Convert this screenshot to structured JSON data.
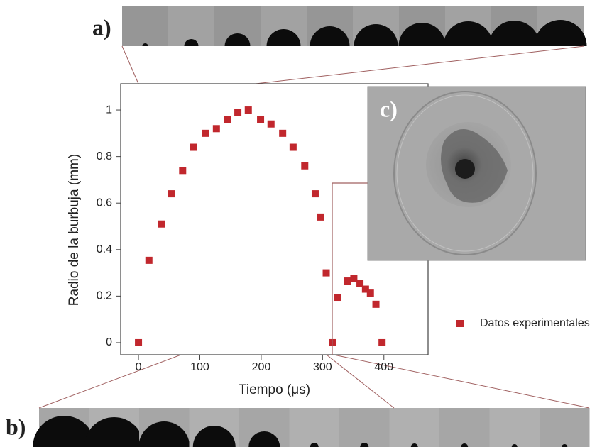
{
  "panels": {
    "a": "a)",
    "b": "b)",
    "c": "c)"
  },
  "chart_data": {
    "type": "scatter",
    "x_label": "Tiempo (μs)",
    "y_label": "Radio de la burbuja (mm)",
    "xlim": [
      -29,
      472
    ],
    "ylim": [
      -0.052,
      1.113
    ],
    "xticks": [
      0,
      100,
      200,
      300,
      400
    ],
    "yticks": [
      0,
      0.2,
      0.4,
      0.6,
      0.8,
      1
    ],
    "series": [
      {
        "name": "Datos experimentales",
        "color": "#c1272d",
        "x": [
          0,
          17,
          37,
          54,
          72,
          90,
          109,
          127,
          145,
          162,
          179,
          199,
          216,
          235,
          252,
          271,
          288,
          297,
          306,
          316,
          325,
          341,
          351,
          361,
          370,
          378,
          387,
          397
        ],
        "values": [
          0,
          0.354,
          0.51,
          0.64,
          0.74,
          0.84,
          0.9,
          0.92,
          0.96,
          0.99,
          1.0,
          0.96,
          0.94,
          0.9,
          0.84,
          0.76,
          0.64,
          0.54,
          0.3,
          0,
          0.195,
          0.265,
          0.277,
          0.256,
          0.23,
          0.213,
          0.165,
          0
        ]
      }
    ],
    "legend": "right"
  }
}
